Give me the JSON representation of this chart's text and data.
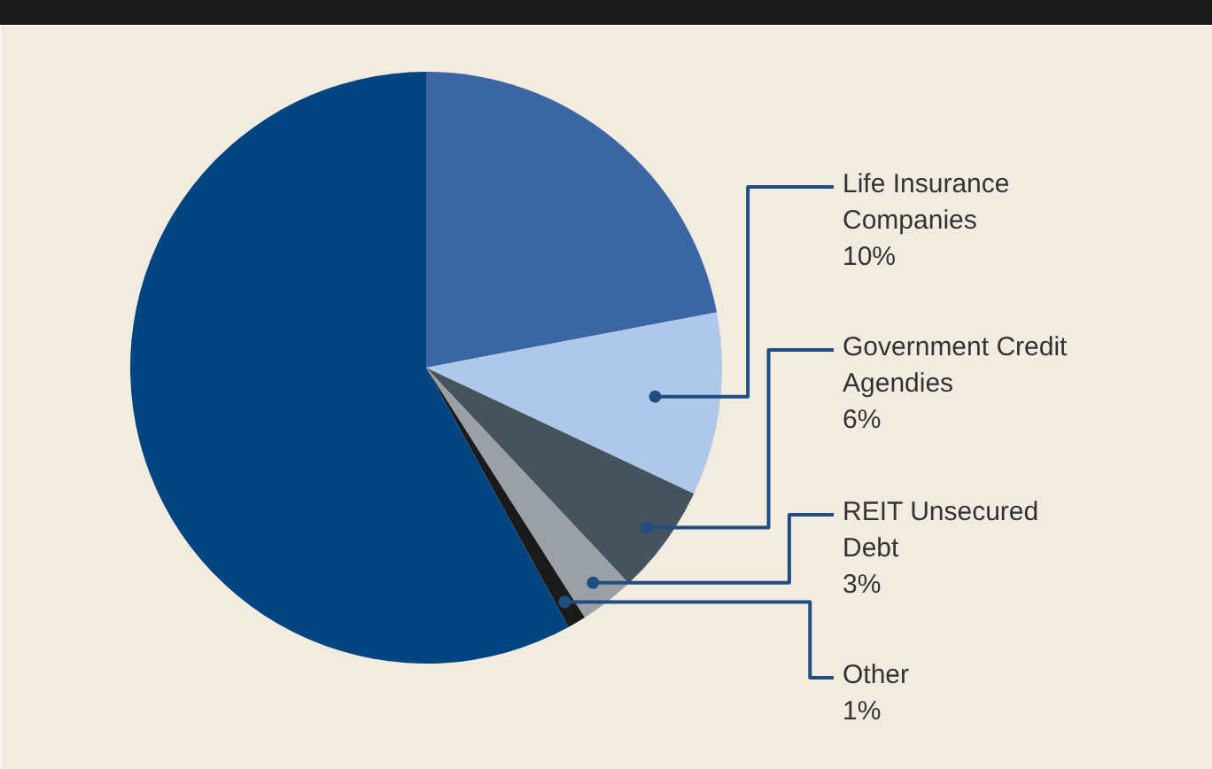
{
  "chart_data": {
    "type": "pie",
    "categories": [
      null,
      "Life Insurance Companies",
      "Government Credit Agendies",
      "REIT Unsecured Debt",
      "Other",
      null
    ],
    "values": [
      22,
      10,
      6,
      3,
      1,
      58
    ],
    "value_labels": [
      null,
      "10%",
      "6%",
      "3%",
      "1%",
      null
    ],
    "colors": [
      "#3a66a4",
      "#adc8e8",
      "#45535f",
      "#9aa0a6",
      "#1a1a1a",
      "#004480"
    ]
  }
}
